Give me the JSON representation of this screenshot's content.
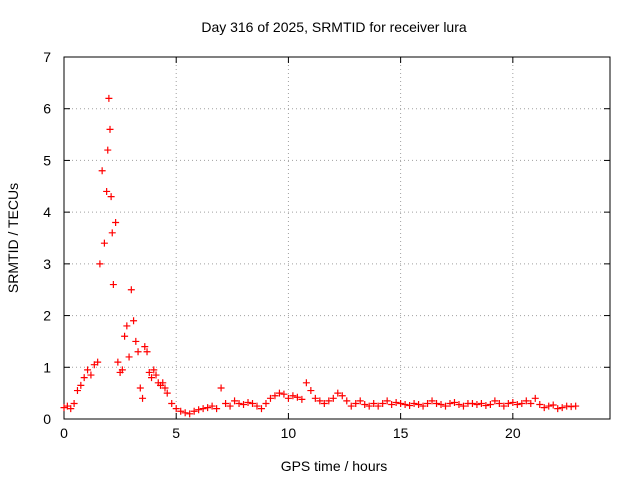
{
  "chart_data": {
    "type": "scatter",
    "title": "Day 316 of 2025, SRMTID for receiver lura",
    "xlabel": "GPS time / hours",
    "ylabel": "SRMTID / TECUs",
    "xlim": [
      0,
      24.33
    ],
    "ylim": [
      0,
      7
    ],
    "xticks": [
      0,
      5,
      10,
      15,
      20
    ],
    "yticks": [
      0,
      1,
      2,
      3,
      4,
      5,
      6,
      7
    ],
    "grid": true,
    "marker": "+",
    "color": "#ff0000",
    "series": [
      {
        "name": "SRMTID",
        "x": [
          0.0,
          0.15,
          0.3,
          0.45,
          0.6,
          0.75,
          0.9,
          1.05,
          1.2,
          1.35,
          1.5,
          1.6,
          1.7,
          1.8,
          1.9,
          1.95,
          2.0,
          2.05,
          2.1,
          2.15,
          2.2,
          2.3,
          2.4,
          2.5,
          2.6,
          2.7,
          2.8,
          2.9,
          3.0,
          3.1,
          3.2,
          3.3,
          3.4,
          3.5,
          3.6,
          3.7,
          3.8,
          3.9,
          4.0,
          4.1,
          4.2,
          4.3,
          4.4,
          4.5,
          4.6,
          4.8,
          5.0,
          5.2,
          5.4,
          5.6,
          5.8,
          6.0,
          6.2,
          6.4,
          6.6,
          6.8,
          7.0,
          7.2,
          7.4,
          7.6,
          7.8,
          8.0,
          8.2,
          8.4,
          8.6,
          8.8,
          9.0,
          9.2,
          9.4,
          9.6,
          9.8,
          10.0,
          10.2,
          10.4,
          10.6,
          10.8,
          11.0,
          11.2,
          11.4,
          11.6,
          11.8,
          12.0,
          12.2,
          12.4,
          12.6,
          12.8,
          13.0,
          13.2,
          13.4,
          13.6,
          13.8,
          14.0,
          14.2,
          14.4,
          14.6,
          14.8,
          15.0,
          15.2,
          15.4,
          15.6,
          15.8,
          16.0,
          16.2,
          16.4,
          16.6,
          16.8,
          17.0,
          17.2,
          17.4,
          17.6,
          17.8,
          18.0,
          18.2,
          18.4,
          18.6,
          18.8,
          19.0,
          19.2,
          19.4,
          19.6,
          19.8,
          20.0,
          20.2,
          20.4,
          20.6,
          20.8,
          21.0,
          21.2,
          21.4,
          21.6,
          21.8,
          22.0,
          22.2,
          22.4,
          22.6,
          22.8
        ],
        "y": [
          0.22,
          0.25,
          0.2,
          0.3,
          0.55,
          0.65,
          0.8,
          0.95,
          0.85,
          1.05,
          1.1,
          3.0,
          4.8,
          3.4,
          4.4,
          5.2,
          6.2,
          5.6,
          4.3,
          3.6,
          2.6,
          3.8,
          1.1,
          0.9,
          0.95,
          1.6,
          1.8,
          1.2,
          2.5,
          1.9,
          1.5,
          1.3,
          0.6,
          0.4,
          1.4,
          1.3,
          0.9,
          0.8,
          0.95,
          0.85,
          0.7,
          0.65,
          0.7,
          0.6,
          0.5,
          0.3,
          0.2,
          0.15,
          0.12,
          0.1,
          0.15,
          0.18,
          0.2,
          0.22,
          0.25,
          0.2,
          0.6,
          0.3,
          0.25,
          0.35,
          0.3,
          0.28,
          0.32,
          0.3,
          0.25,
          0.2,
          0.3,
          0.4,
          0.45,
          0.5,
          0.48,
          0.4,
          0.45,
          0.42,
          0.38,
          0.7,
          0.55,
          0.4,
          0.35,
          0.3,
          0.35,
          0.4,
          0.5,
          0.45,
          0.35,
          0.25,
          0.3,
          0.35,
          0.28,
          0.25,
          0.3,
          0.25,
          0.3,
          0.35,
          0.28,
          0.32,
          0.3,
          0.28,
          0.26,
          0.3,
          0.28,
          0.25,
          0.3,
          0.35,
          0.3,
          0.28,
          0.25,
          0.3,
          0.32,
          0.28,
          0.25,
          0.3,
          0.3,
          0.28,
          0.3,
          0.26,
          0.28,
          0.35,
          0.3,
          0.25,
          0.3,
          0.32,
          0.28,
          0.3,
          0.35,
          0.3,
          0.4,
          0.28,
          0.22,
          0.25,
          0.27,
          0.2,
          0.22,
          0.25,
          0.24,
          0.25
        ]
      }
    ]
  }
}
